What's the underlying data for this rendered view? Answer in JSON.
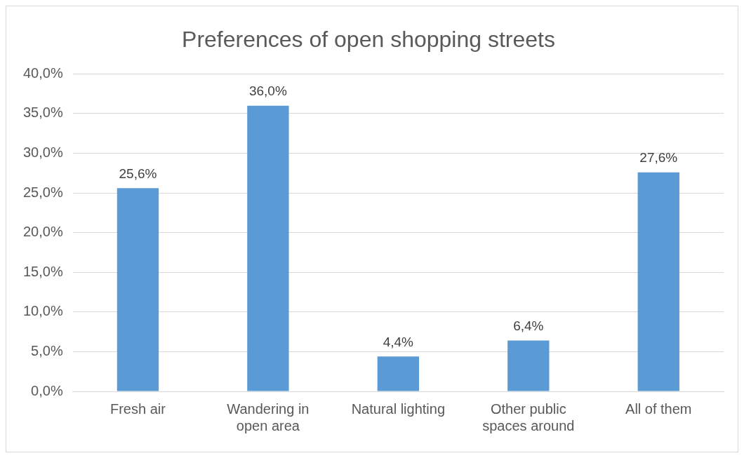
{
  "chart_data": {
    "type": "bar",
    "title": "Preferences of open shopping streets",
    "categories": [
      "Fresh air",
      "Wandering in open area",
      "Natural lighting",
      "Other public spaces around",
      "All of them"
    ],
    "values": [
      25.6,
      36.0,
      4.4,
      6.4,
      27.6
    ],
    "value_labels": [
      "25,6%",
      "36,0%",
      "4,4%",
      "6,4%",
      "27,6%"
    ],
    "color": "#5b9bd5",
    "ylim": [
      0,
      40
    ],
    "yticks": [
      {
        "value": 0,
        "label": "0,0%"
      },
      {
        "value": 5,
        "label": "5,0%"
      },
      {
        "value": 10,
        "label": "10,0%"
      },
      {
        "value": 15,
        "label": "15,0%"
      },
      {
        "value": 20,
        "label": "20,0%"
      },
      {
        "value": 25,
        "label": "25,0%"
      },
      {
        "value": 30,
        "label": "30,0%"
      },
      {
        "value": 35,
        "label": "35,0%"
      },
      {
        "value": 40,
        "label": "40,0%"
      }
    ],
    "grid": "y",
    "legend": false
  }
}
